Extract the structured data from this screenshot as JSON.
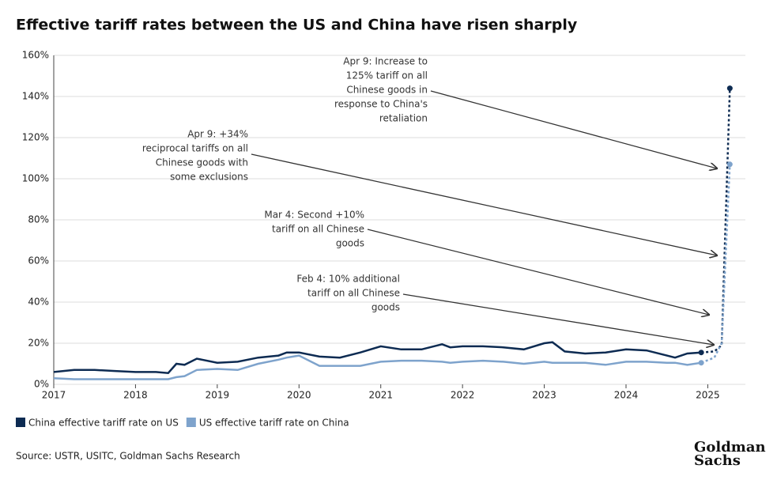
{
  "chart_data": {
    "type": "line",
    "title": "Effective tariff rates between the US and China have risen sharply",
    "x": [
      2017.0,
      2017.25,
      2017.5,
      2017.75,
      2018.0,
      2018.25,
      2018.4,
      2018.5,
      2018.6,
      2018.75,
      2019.0,
      2019.25,
      2019.5,
      2019.75,
      2019.85,
      2020.0,
      2020.25,
      2020.5,
      2020.75,
      2021.0,
      2021.25,
      2021.5,
      2021.75,
      2021.85,
      2022.0,
      2022.25,
      2022.5,
      2022.75,
      2023.0,
      2023.1,
      2023.25,
      2023.5,
      2023.75,
      2024.0,
      2024.25,
      2024.5,
      2024.6,
      2024.75,
      2024.92,
      2025.08,
      2025.17,
      2025.27
    ],
    "series": [
      {
        "name": "China effective tariff rate on US",
        "color": "#0d2b52",
        "values": [
          6,
          7,
          7,
          6.5,
          6,
          6,
          5.5,
          10,
          9.5,
          12.5,
          10.5,
          11,
          13,
          14,
          15.5,
          15.5,
          13.5,
          13,
          15.5,
          18.5,
          17,
          17,
          19.5,
          18,
          18.5,
          18.5,
          18,
          17,
          20,
          20.5,
          16,
          15,
          15.5,
          17,
          16.5,
          14,
          13,
          15,
          15.5,
          16,
          19,
          144
        ]
      },
      {
        "name": "US effective tariff rate on China",
        "color": "#7ea3cc",
        "values": [
          3,
          2.5,
          2.5,
          2.5,
          2.5,
          2.5,
          2.5,
          3.5,
          4,
          7,
          7.5,
          7,
          10,
          12,
          13,
          14,
          9,
          9,
          9,
          11,
          11.5,
          11.5,
          11,
          10.5,
          11,
          11.5,
          11,
          10,
          11,
          10.5,
          10.5,
          10.5,
          9.5,
          11,
          11,
          10.5,
          10.5,
          9.5,
          10.5,
          13,
          20,
          107
        ]
      }
    ],
    "dashed_from": 2024.92,
    "xlim": [
      2017,
      2025.46
    ],
    "xticks": [
      2017,
      2018,
      2019,
      2020,
      2021,
      2022,
      2023,
      2024,
      2025
    ],
    "ylim": [
      0,
      160
    ],
    "yticks": [
      {
        "value": 0,
        "label": "0%"
      },
      {
        "value": 20,
        "label": "20%"
      },
      {
        "value": 40,
        "label": "40%"
      },
      {
        "value": 60,
        "label": "60%"
      },
      {
        "value": 80,
        "label": "80%"
      },
      {
        "value": 100,
        "label": "100%"
      },
      {
        "value": 120,
        "label": "120%"
      },
      {
        "value": 140,
        "label": "140%"
      },
      {
        "value": 160,
        "label": "160%"
      }
    ],
    "grid": true,
    "annotations": [
      [
        "Apr 9: Increase to",
        "125% tariff on all",
        "Chinese goods in",
        "response to China's",
        "retaliation"
      ],
      [
        "Apr 9: +34%",
        "reciprocal tariffs on all",
        "Chinese goods with",
        "some exclusions"
      ],
      [
        "Mar 4: Second +10%",
        "tariff on all Chinese",
        "goods"
      ],
      [
        "Feb 4: 10% additional",
        "tariff on all Chinese",
        "goods"
      ]
    ],
    "source": "Source: USTR, USITC, Goldman Sachs Research",
    "logo": [
      "Goldman",
      "Sachs"
    ]
  }
}
